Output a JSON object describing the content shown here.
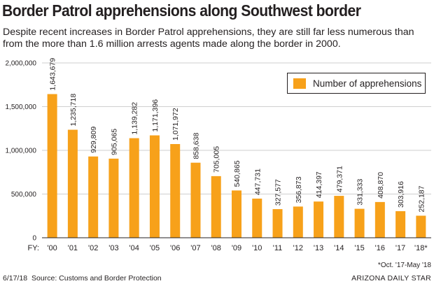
{
  "title": "Border Patrol apprehensions along Southwest border",
  "subtitle": "Despite recent increases in Border Patrol apprehensions, they are still far less numerous than from the more than 1.6 million arrests agents made along the border in 2000.",
  "footer": {
    "date": "6/17/18",
    "source": "Source: Customs and Border Protection",
    "credit": "ARIZONA DAILY STAR",
    "footnote": "*Oct. '17-May '18"
  },
  "colors": {
    "bar": "#f7a11a",
    "axis": "#231f20",
    "grid": "#cfcfcf"
  },
  "chart_data": {
    "type": "bar",
    "title": "Border Patrol apprehensions along Southwest border",
    "xlabel": "FY:",
    "ylabel": "",
    "ylim": [
      0,
      2000000
    ],
    "y_ticks": [
      0,
      500000,
      1000000,
      1500000,
      2000000
    ],
    "y_tick_labels": [
      "0",
      "500,000",
      "1,000,000",
      "1,500,000",
      "2,000,000"
    ],
    "grid": true,
    "legend": {
      "position": "top-right",
      "entries": [
        "Number of apprehensions"
      ]
    },
    "categories": [
      "'00",
      "'01",
      "'02",
      "'03",
      "'04",
      "'05",
      "'06",
      "'07",
      "'08",
      "'09",
      "'10",
      "'11",
      "'12",
      "'13",
      "'14",
      "'15",
      "'16",
      "'17",
      "'18*"
    ],
    "series": [
      {
        "name": "Number of apprehensions",
        "values": [
          1643679,
          1235718,
          929809,
          905065,
          1139282,
          1171396,
          1071972,
          858638,
          705005,
          540865,
          447731,
          327577,
          356873,
          414397,
          479371,
          331333,
          408870,
          303916,
          252187
        ],
        "labels": [
          "1,643,679",
          "1,235,718",
          "929,809",
          "905,065",
          "1,139,282",
          "1,171,396",
          "1,071,972",
          "858,638",
          "705,005",
          "540,865",
          "447,731",
          "327,577",
          "356,873",
          "414,397",
          "479,371",
          "331,333",
          "408,870",
          "303,916",
          "252,187"
        ]
      }
    ]
  }
}
